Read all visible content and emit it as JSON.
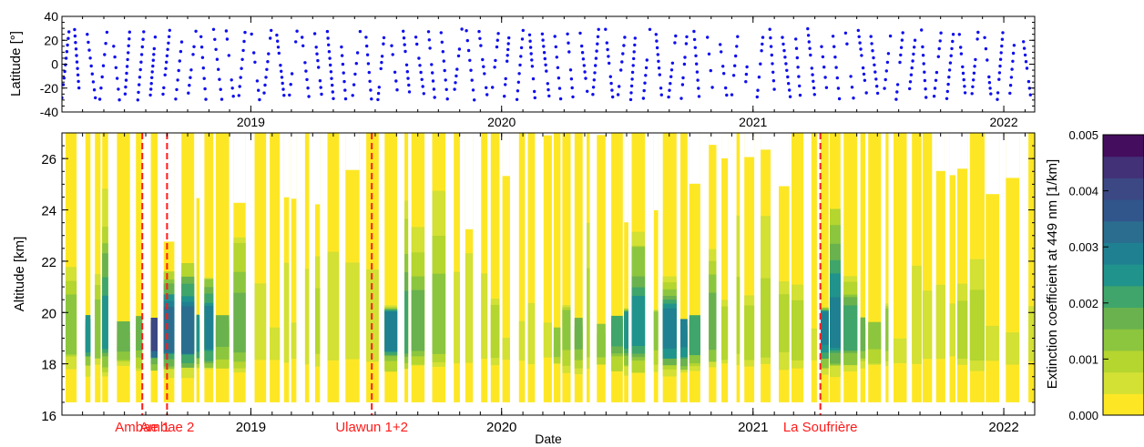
{
  "chart_data": [
    {
      "type": "scatter",
      "panel": "top",
      "ylabel": "Latitude [°]",
      "xlabel": "",
      "ylim": [
        -40,
        40
      ],
      "y_ticks": [
        "40",
        "20",
        "0",
        "-20",
        "-40"
      ],
      "x_ticks": [
        "2019",
        "2020",
        "2021",
        "2022"
      ],
      "x_tick_dates": [
        "2019-01-01",
        "2020-01-01",
        "2021-01-01",
        "2022-01-01"
      ],
      "xlim": [
        "2018-04-01",
        "2022-02-15"
      ],
      "marker_color": "#1010ee",
      "series": [
        {
          "pattern": "repeating north-south sweeps of sunrise/sunset occultation latitudes between about -30° and +30°",
          "x_start": "2018-04-01",
          "x_end": "2022-02-15",
          "sweep_period_days": 18.4,
          "lat_range": [
            -30,
            30
          ]
        }
      ]
    },
    {
      "type": "heatmap",
      "panel": "bottom",
      "xlabel": "Date",
      "ylabel": "Altitude [km]",
      "ylim": [
        16,
        27
      ],
      "y_ticks": [
        "26",
        "24",
        "22",
        "20",
        "18",
        "16"
      ],
      "x_ticks": [
        "2019",
        "2020",
        "2021",
        "2022"
      ],
      "x_tick_dates": [
        "2019-01-01",
        "2020-01-01",
        "2021-01-01",
        "2022-01-01"
      ],
      "xlim": [
        "2018-04-01",
        "2022-02-15"
      ],
      "colorbar": {
        "label": "Extinction coefficient at 449 nm [1/km]",
        "range": [
          0.0,
          0.005
        ],
        "tick_labels": [
          "0.000",
          "0.001",
          "0.002",
          "0.003",
          "0.004",
          "0.005"
        ],
        "colors": [
          "#fde725",
          "#d3e034",
          "#b5d52f",
          "#8cc63e",
          "#6ab24e",
          "#3fa56b",
          "#20938c",
          "#1f8091",
          "#2a6d8e",
          "#31568b",
          "#3b4883",
          "#433177",
          "#440d5d"
        ]
      },
      "events": [
        {
          "label": "Ambae 1",
          "date": "2018-07-27"
        },
        {
          "label": "Ambae 2",
          "date": "2018-09-01"
        },
        {
          "label": "Ulawun 1+2",
          "date": "2019-06-26"
        },
        {
          "label": "La Soufrière",
          "date": "2021-04-09"
        }
      ],
      "event_color": "#ff1a1a"
    }
  ]
}
